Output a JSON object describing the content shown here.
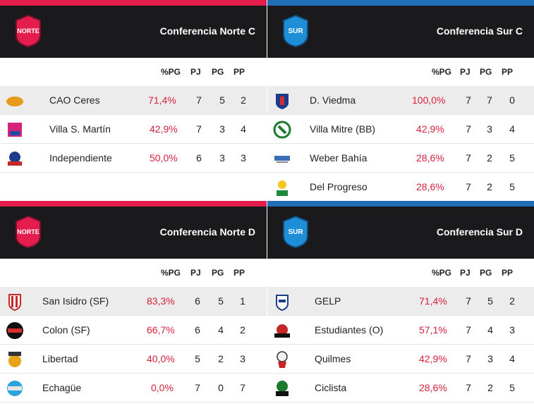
{
  "colors": {
    "norte": "#e31d4c",
    "sur": "#1e6fb5",
    "header_bg": "#1a1a1c",
    "pct": "#d6213a"
  },
  "headers": {
    "pct": "%PG",
    "pj": "PJ",
    "pg": "PG",
    "pp": "PP"
  },
  "panels": {
    "norte_c": {
      "title": "Conferencia Norte C",
      "logo_text": "NORTE",
      "rows": [
        {
          "team": "CAO Ceres",
          "pct": "71,4%",
          "pj": "7",
          "pg": "5",
          "pp": "2"
        },
        {
          "team": "Villa S. Martín",
          "pct": "42,9%",
          "pj": "7",
          "pg": "3",
          "pp": "4"
        },
        {
          "team": "Independiente",
          "pct": "50,0%",
          "pj": "6",
          "pg": "3",
          "pp": "3"
        }
      ]
    },
    "sur_c": {
      "title": "Conferencia Sur C",
      "logo_text": "SUR",
      "rows": [
        {
          "team": "D. Viedma",
          "pct": "100,0%",
          "pj": "7",
          "pg": "7",
          "pp": "0"
        },
        {
          "team": "Villa Mitre (BB)",
          "pct": "42,9%",
          "pj": "7",
          "pg": "3",
          "pp": "4"
        },
        {
          "team": "Weber Bahía",
          "pct": "28,6%",
          "pj": "7",
          "pg": "2",
          "pp": "5"
        },
        {
          "team": "Del Progreso",
          "pct": "28,6%",
          "pj": "7",
          "pg": "2",
          "pp": "5"
        }
      ]
    },
    "norte_d": {
      "title": "Conferencia Norte D",
      "logo_text": "NORTE",
      "rows": [
        {
          "team": "San Isidro (SF)",
          "pct": "83,3%",
          "pj": "6",
          "pg": "5",
          "pp": "1"
        },
        {
          "team": "Colon (SF)",
          "pct": "66,7%",
          "pj": "6",
          "pg": "4",
          "pp": "2"
        },
        {
          "team": "Libertad",
          "pct": "40,0%",
          "pj": "5",
          "pg": "2",
          "pp": "3"
        },
        {
          "team": "Echagüe",
          "pct": "0,0%",
          "pj": "7",
          "pg": "0",
          "pp": "7"
        }
      ]
    },
    "sur_d": {
      "title": "Conferencia Sur D",
      "logo_text": "SUR",
      "rows": [
        {
          "team": "GELP",
          "pct": "71,4%",
          "pj": "7",
          "pg": "5",
          "pp": "2"
        },
        {
          "team": "Estudiantes (O)",
          "pct": "57,1%",
          "pj": "7",
          "pg": "4",
          "pp": "3"
        },
        {
          "team": "Quilmes",
          "pct": "42,9%",
          "pj": "7",
          "pg": "3",
          "pp": "4"
        },
        {
          "team": "Ciclista",
          "pct": "28,6%",
          "pj": "7",
          "pg": "2",
          "pp": "5"
        }
      ]
    }
  }
}
